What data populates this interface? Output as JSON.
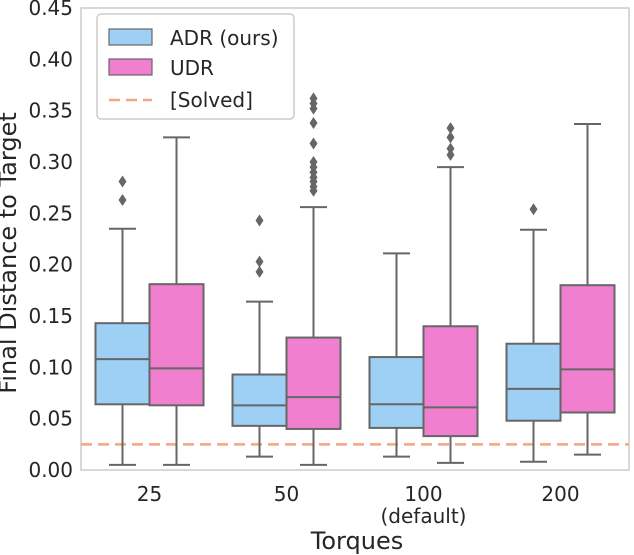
{
  "chart_data": {
    "type": "boxplot",
    "xlabel": "Torques",
    "ylabel": "Final Distance to Target",
    "ylim": [
      0,
      0.45
    ],
    "yticks": [
      0.0,
      0.05,
      0.1,
      0.15,
      0.2,
      0.25,
      0.3,
      0.35,
      0.4,
      0.45
    ],
    "ytick_labels": [
      "0.00",
      "0.05",
      "0.10",
      "0.15",
      "0.20",
      "0.25",
      "0.30",
      "0.35",
      "0.40",
      "0.45"
    ],
    "categories": [
      "25",
      "50",
      "100",
      "200"
    ],
    "category_sublabels": [
      "",
      "",
      "(default)",
      ""
    ],
    "series": [
      {
        "name": "ADR (ours)",
        "color": "#9ecff5",
        "boxes": [
          {
            "whislo": 0.005,
            "q1": 0.064,
            "median": 0.108,
            "q3": 0.143,
            "whishi": 0.235,
            "fliers": [
              0.263,
              0.281
            ]
          },
          {
            "whislo": 0.013,
            "q1": 0.043,
            "median": 0.063,
            "q3": 0.093,
            "whishi": 0.164,
            "fliers": [
              0.193,
              0.203,
              0.243
            ]
          },
          {
            "whislo": 0.013,
            "q1": 0.041,
            "median": 0.064,
            "q3": 0.11,
            "whishi": 0.211,
            "fliers": []
          },
          {
            "whislo": 0.008,
            "q1": 0.048,
            "median": 0.079,
            "q3": 0.123,
            "whishi": 0.234,
            "fliers": [
              0.254
            ]
          }
        ]
      },
      {
        "name": "UDR",
        "color": "#f07fcf",
        "boxes": [
          {
            "whislo": 0.005,
            "q1": 0.063,
            "median": 0.099,
            "q3": 0.181,
            "whishi": 0.324,
            "fliers": []
          },
          {
            "whislo": 0.005,
            "q1": 0.04,
            "median": 0.071,
            "q3": 0.129,
            "whishi": 0.256,
            "fliers": [
              0.272,
              0.276,
              0.281,
              0.285,
              0.29,
              0.295,
              0.3,
              0.318,
              0.338,
              0.352,
              0.357,
              0.362
            ]
          },
          {
            "whislo": 0.007,
            "q1": 0.033,
            "median": 0.061,
            "q3": 0.14,
            "whishi": 0.295,
            "fliers": [
              0.307,
              0.313,
              0.324,
              0.333
            ]
          },
          {
            "whislo": 0.015,
            "q1": 0.056,
            "median": 0.098,
            "q3": 0.18,
            "whishi": 0.337,
            "fliers": []
          }
        ]
      }
    ],
    "reference_line": {
      "name": "[Solved]",
      "y": 0.025,
      "color": "#f4a582",
      "style": "dashed"
    },
    "legend": {
      "placement": "top-left",
      "entries": [
        "ADR (ours)",
        "UDR",
        "[Solved]"
      ]
    },
    "grid": false
  }
}
